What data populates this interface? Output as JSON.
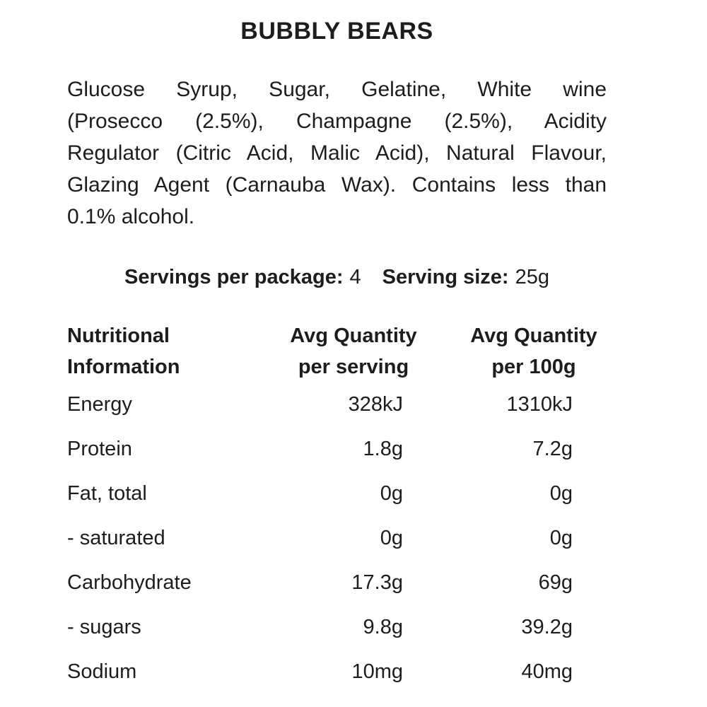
{
  "title": "BUBBLY BEARS",
  "ingredients": {
    "text": "Glucose Syrup, Sugar, Gelatine, White wine (Prosecco (2.5%), Champagne (2.5%), Acidity Regulator (Citric Acid, Malic Acid), Natural Flavour, Glazing Agent (Carnauba Wax). Contains less than 0.1% alcohol.",
    "lines": [
      "Glucose Syrup, Sugar, Gelatine, White wine",
      "(Prosecco (2.5%), Champagne (2.5%), Acidity",
      "Regulator (Citric Acid, Malic Acid), Natural Flavour,",
      "Glazing Agent (Carnauba Wax). Contains less than",
      "0.1% alcohol."
    ]
  },
  "servings": {
    "per_package_label": "Servings per package:",
    "per_package_value": "4",
    "serving_size_label": "Serving size:",
    "serving_size_value": "25g"
  },
  "table": {
    "columns": [
      {
        "line1": "Nutritional",
        "line2": "Information"
      },
      {
        "line1": "Avg Quantity",
        "line2": "per serving"
      },
      {
        "line1": "Avg Quantity",
        "line2": "per 100g"
      }
    ],
    "rows": [
      {
        "label": "Energy",
        "per_serving": "328kJ",
        "per_100g": "1310kJ"
      },
      {
        "label": "Protein",
        "per_serving": "1.8g",
        "per_100g": "7.2g"
      },
      {
        "label": "Fat, total",
        "per_serving": "0g",
        "per_100g": "0g"
      },
      {
        "label": "- saturated",
        "per_serving": "0g",
        "per_100g": "0g"
      },
      {
        "label": "Carbohydrate",
        "per_serving": "17.3g",
        "per_100g": "69g"
      },
      {
        "label": "- sugars",
        "per_serving": "9.8g",
        "per_100g": "39.2g"
      },
      {
        "label": "Sodium",
        "per_serving": "10mg",
        "per_100g": "40mg"
      }
    ]
  },
  "colors": {
    "text": "#1d1d1d",
    "background": "#ffffff"
  }
}
